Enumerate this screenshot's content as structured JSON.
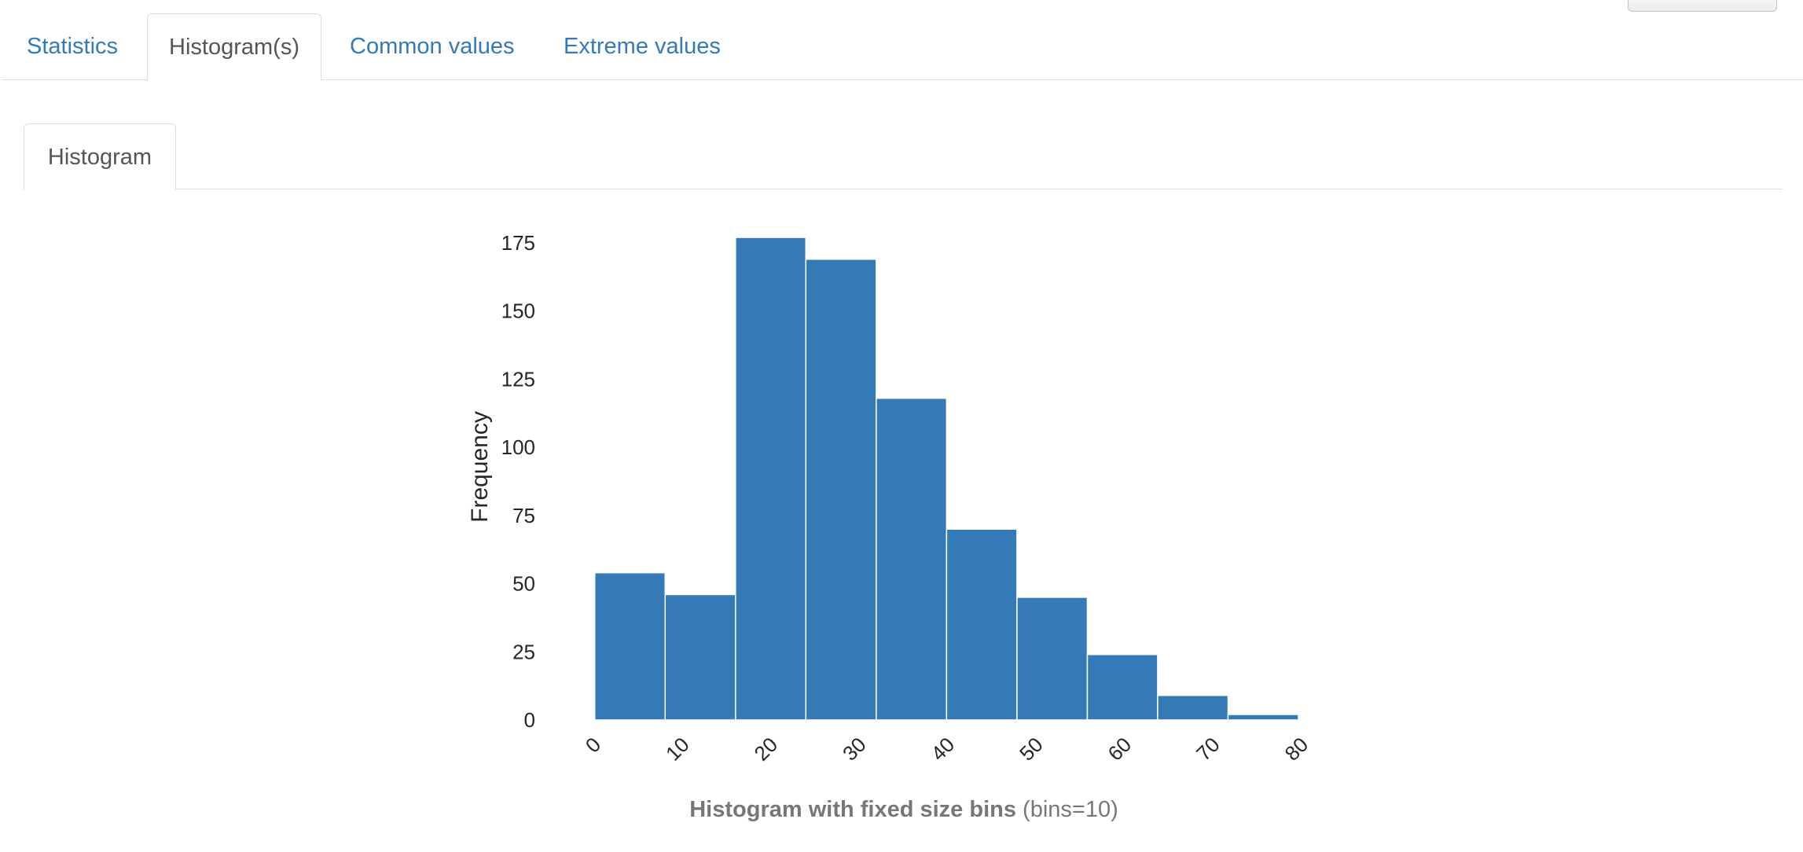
{
  "tabs": [
    {
      "label": "Statistics",
      "active": false
    },
    {
      "label": "Histogram(s)",
      "active": true
    },
    {
      "label": "Common values",
      "active": false
    },
    {
      "label": "Extreme values",
      "active": false
    }
  ],
  "subtabs": [
    {
      "label": "Histogram",
      "active": true
    }
  ],
  "colors": {
    "link": "#337ab7",
    "bar": "#337ab7",
    "caption": "#777777"
  },
  "chart_data": {
    "type": "bar",
    "ylabel": "Frequency",
    "xlabel": "",
    "title": "",
    "x_ticks": [
      "0",
      "10",
      "20",
      "30",
      "40",
      "50",
      "60",
      "70",
      "80"
    ],
    "y_ticks": [
      "0",
      "25",
      "50",
      "75",
      "100",
      "125",
      "150",
      "175"
    ],
    "xlim": [
      0,
      80
    ],
    "ylim": [
      0,
      180
    ],
    "bin_edges": [
      0.42,
      8.38,
      16.34,
      24.29,
      32.25,
      40.21,
      48.17,
      56.13,
      64.08,
      72.04,
      80.0
    ],
    "values": [
      54,
      46,
      177,
      169,
      118,
      70,
      45,
      24,
      9,
      2
    ],
    "grid": false,
    "caption_bold": "Histogram with fixed size bins",
    "caption_rest": "(bins=10)"
  }
}
